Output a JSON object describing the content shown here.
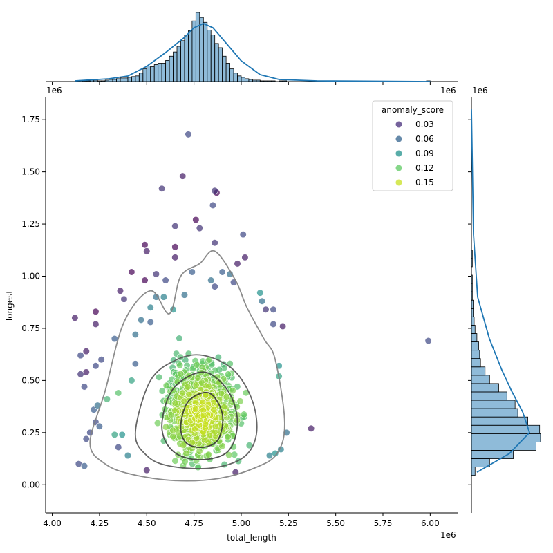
{
  "chart_data": {
    "type": "scatter",
    "xlabel": "total_length",
    "ylabel": "longest",
    "x_offset_label": "1e6",
    "y_offset_label": "1e6",
    "xlim": [
      3.965,
      6.145
    ],
    "ylim": [
      -0.135,
      1.86
    ],
    "x_ticks": [
      "4.00",
      "4.25",
      "4.50",
      "4.75",
      "5.00",
      "5.25",
      "5.50",
      "5.75",
      "6.00"
    ],
    "y_ticks": [
      "0.00",
      "0.25",
      "0.50",
      "0.75",
      "1.00",
      "1.25",
      "1.50",
      "1.75"
    ],
    "legend": {
      "title": "anomaly_score",
      "placement": "top-right",
      "entries": [
        {
          "label": "0.03",
          "color": "#472d7b"
        },
        {
          "label": "0.06",
          "color": "#33638d"
        },
        {
          "label": "0.09",
          "color": "#21918c"
        },
        {
          "label": "0.12",
          "color": "#5ec962"
        },
        {
          "label": "0.15",
          "color": "#c8e020"
        }
      ]
    },
    "colormap": "viridis",
    "point_alpha": 0.7,
    "marginal_color": "#1f77b4",
    "points": [
      [
        4.12,
        0.8,
        0.03
      ],
      [
        4.15,
        0.62,
        0.05
      ],
      [
        4.15,
        0.53,
        0.04
      ],
      [
        4.18,
        0.54,
        0.03
      ],
      [
        4.18,
        0.64,
        0.03
      ],
      [
        4.17,
        0.47,
        0.05
      ],
      [
        4.2,
        0.25,
        0.05
      ],
      [
        4.18,
        0.22,
        0.05
      ],
      [
        4.14,
        0.1,
        0.05
      ],
      [
        4.17,
        0.09,
        0.06
      ],
      [
        4.23,
        0.83,
        0.02
      ],
      [
        4.23,
        0.77,
        0.03
      ],
      [
        4.23,
        0.57,
        0.05
      ],
      [
        4.26,
        0.6,
        0.05
      ],
      [
        4.22,
        0.36,
        0.06
      ],
      [
        4.23,
        0.3,
        0.05
      ],
      [
        4.24,
        0.38,
        0.07
      ],
      [
        4.25,
        0.28,
        0.06
      ],
      [
        4.33,
        0.7,
        0.06
      ],
      [
        4.36,
        0.93,
        0.03
      ],
      [
        4.38,
        0.89,
        0.04
      ],
      [
        4.42,
        1.02,
        0.02
      ],
      [
        4.5,
        1.12,
        0.03
      ],
      [
        4.49,
        1.15,
        0.02
      ],
      [
        4.49,
        0.98,
        0.02
      ],
      [
        4.55,
        1.01,
        0.04
      ],
      [
        4.58,
        1.42,
        0.04
      ],
      [
        4.6,
        0.98,
        0.05
      ],
      [
        4.65,
        1.09,
        0.03
      ],
      [
        4.65,
        1.24,
        0.04
      ],
      [
        4.65,
        1.14,
        0.02
      ],
      [
        4.69,
        1.48,
        0.03
      ],
      [
        4.72,
        1.68,
        0.05
      ],
      [
        4.76,
        1.27,
        0.02
      ],
      [
        4.78,
        1.23,
        0.04
      ],
      [
        4.86,
        1.41,
        0.04
      ],
      [
        4.87,
        1.4,
        0.02
      ],
      [
        4.85,
        1.34,
        0.05
      ],
      [
        4.86,
        1.16,
        0.04
      ],
      [
        5.01,
        1.2,
        0.05
      ],
      [
        5.02,
        1.09,
        0.03
      ],
      [
        4.98,
        1.06,
        0.03
      ],
      [
        5.13,
        0.84,
        0.04
      ],
      [
        5.17,
        0.84,
        0.05
      ],
      [
        5.17,
        0.77,
        0.05
      ],
      [
        5.22,
        0.76,
        0.03
      ],
      [
        5.37,
        0.27,
        0.03
      ],
      [
        5.99,
        0.69,
        0.05
      ],
      [
        4.5,
        0.07,
        0.03
      ],
      [
        4.97,
        0.06,
        0.03
      ],
      [
        4.35,
        0.18,
        0.05
      ],
      [
        4.33,
        0.24,
        0.1
      ],
      [
        4.37,
        0.24,
        0.09
      ],
      [
        4.4,
        0.14,
        0.08
      ],
      [
        4.42,
        0.5,
        0.1
      ],
      [
        4.44,
        0.58,
        0.06
      ],
      [
        4.44,
        0.72,
        0.07
      ],
      [
        4.47,
        0.79,
        0.07
      ],
      [
        4.52,
        0.78,
        0.06
      ],
      [
        4.52,
        0.85,
        0.08
      ],
      [
        4.55,
        0.9,
        0.07
      ],
      [
        4.59,
        0.9,
        0.08
      ],
      [
        4.64,
        0.84,
        0.09
      ],
      [
        4.7,
        0.91,
        0.07
      ],
      [
        4.74,
        1.02,
        0.06
      ],
      [
        4.84,
        0.98,
        0.07
      ],
      [
        4.86,
        0.95,
        0.05
      ],
      [
        4.9,
        1.02,
        0.06
      ],
      [
        4.94,
        1.01,
        0.07
      ],
      [
        4.96,
        0.97,
        0.05
      ],
      [
        5.1,
        0.92,
        0.09
      ],
      [
        5.11,
        0.88,
        0.07
      ],
      [
        5.2,
        0.57,
        0.09
      ],
      [
        5.2,
        0.52,
        0.1
      ],
      [
        5.24,
        0.25,
        0.07
      ],
      [
        5.21,
        0.17,
        0.08
      ],
      [
        5.18,
        0.15,
        0.09
      ],
      [
        5.15,
        0.14,
        0.08
      ],
      [
        4.29,
        0.41,
        0.11
      ],
      [
        4.35,
        0.44,
        0.12
      ]
    ],
    "contour_levels": [
      [
        [
          4.2,
          0.2
        ],
        [
          4.28,
          0.45
        ],
        [
          4.38,
          0.78
        ],
        [
          4.52,
          0.93
        ],
        [
          4.62,
          0.82
        ],
        [
          4.68,
          1.0
        ],
        [
          4.78,
          1.06
        ],
        [
          4.86,
          1.12
        ],
        [
          4.97,
          0.98
        ],
        [
          5.03,
          0.85
        ],
        [
          5.12,
          0.7
        ],
        [
          5.18,
          0.6
        ],
        [
          5.23,
          0.3
        ],
        [
          5.19,
          0.15
        ],
        [
          5.07,
          0.08
        ],
        [
          4.88,
          0.03
        ],
        [
          4.65,
          0.02
        ],
        [
          4.42,
          0.05
        ],
        [
          4.28,
          0.1
        ],
        [
          4.2,
          0.2
        ]
      ],
      [
        [
          4.44,
          0.25
        ],
        [
          4.52,
          0.5
        ],
        [
          4.66,
          0.6
        ],
        [
          4.8,
          0.62
        ],
        [
          4.96,
          0.55
        ],
        [
          5.06,
          0.4
        ],
        [
          5.08,
          0.24
        ],
        [
          5.01,
          0.13
        ],
        [
          4.84,
          0.08
        ],
        [
          4.62,
          0.09
        ],
        [
          4.5,
          0.14
        ],
        [
          4.44,
          0.25
        ]
      ],
      [
        [
          4.58,
          0.28
        ],
        [
          4.64,
          0.46
        ],
        [
          4.8,
          0.54
        ],
        [
          4.93,
          0.45
        ],
        [
          4.98,
          0.3
        ],
        [
          4.93,
          0.16
        ],
        [
          4.78,
          0.12
        ],
        [
          4.64,
          0.16
        ],
        [
          4.58,
          0.28
        ]
      ],
      [
        [
          4.68,
          0.28
        ],
        [
          4.72,
          0.4
        ],
        [
          4.83,
          0.44
        ],
        [
          4.9,
          0.34
        ],
        [
          4.88,
          0.22
        ],
        [
          4.8,
          0.18
        ],
        [
          4.71,
          0.2
        ],
        [
          4.68,
          0.28
        ]
      ]
    ],
    "x_marginal": {
      "type": "histogram",
      "bins_start": 4.12,
      "bin_width": 0.02,
      "counts": [
        0,
        0,
        1,
        1,
        2,
        2,
        1,
        1,
        2,
        3,
        3,
        4,
        5,
        5,
        6,
        7,
        8,
        12,
        18,
        22,
        21,
        24,
        26,
        26,
        30,
        36,
        42,
        50,
        58,
        66,
        72,
        86,
        98,
        91,
        84,
        73,
        66,
        54,
        48,
        36,
        26,
        18,
        12,
        8,
        6,
        4,
        3,
        2,
        2,
        1,
        1,
        1,
        1,
        0,
        1,
        1,
        0,
        0,
        0,
        0,
        0,
        0,
        0,
        0,
        0,
        0,
        0,
        0,
        0,
        0,
        0,
        0,
        0,
        0,
        0,
        0,
        0,
        0,
        0,
        0,
        0,
        0,
        0,
        0,
        0,
        0,
        0,
        0,
        0,
        0,
        0,
        0,
        0,
        1
      ],
      "kde_x": [
        4.12,
        4.3,
        4.4,
        4.5,
        4.6,
        4.7,
        4.75,
        4.8,
        4.85,
        4.9,
        5.0,
        5.1,
        5.2,
        5.4,
        6.0
      ],
      "kde_y": [
        0.01,
        0.04,
        0.08,
        0.22,
        0.42,
        0.64,
        0.78,
        0.84,
        0.78,
        0.62,
        0.3,
        0.1,
        0.03,
        0.01,
        0.0
      ]
    },
    "y_marginal": {
      "type": "histogram",
      "bins_start": 0.045,
      "bin_width": 0.04,
      "counts": [
        4,
        20,
        46,
        71,
        76,
        75,
        62,
        51,
        48,
        39,
        30,
        20,
        15,
        10,
        9,
        8,
        6,
        4,
        3,
        2,
        2,
        1,
        1,
        1,
        0,
        1,
        1,
        0,
        0,
        0,
        0,
        0,
        0,
        0,
        0,
        0,
        0,
        0,
        0,
        0,
        0,
        0
      ],
      "kde_y": [
        0.06,
        0.15,
        0.25,
        0.35,
        0.45,
        0.55,
        0.7,
        0.9,
        1.2,
        1.6,
        1.8
      ],
      "kde_x": [
        0.08,
        0.55,
        0.84,
        0.74,
        0.58,
        0.44,
        0.26,
        0.09,
        0.03,
        0.01,
        0.0
      ]
    }
  }
}
